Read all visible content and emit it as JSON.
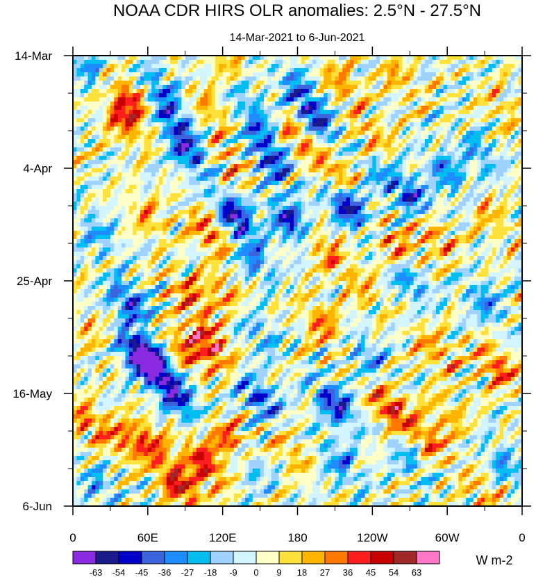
{
  "chart_data": {
    "type": "heatmap",
    "title": "NOAA CDR HIRS OLR anomalies: 2.5°N - 27.5°N",
    "subtitle": "14-Mar-2021 to 6-Jun-2021",
    "xlabel": "",
    "ylabel": "",
    "x_ticks": [
      "0",
      "60E",
      "120E",
      "180",
      "120W",
      "60W",
      "0"
    ],
    "x_range_deg": [
      0,
      360
    ],
    "y_ticks": [
      "14-Mar",
      "4-Apr",
      "25-Apr",
      "16-May",
      "6-Jun"
    ],
    "y_range_days": [
      0,
      84
    ],
    "units": "W m-2",
    "levels": [
      -63,
      -54,
      -45,
      -36,
      -27,
      -18,
      -9,
      0,
      9,
      18,
      27,
      36,
      45,
      54,
      63
    ],
    "colors": [
      "#8a2be2",
      "#1a1a8c",
      "#0000c8",
      "#3c64dc",
      "#1e8cff",
      "#00bef0",
      "#a0d2ff",
      "#d2f5ff",
      "#ffffc8",
      "#ffe13c",
      "#ffb400",
      "#ff7800",
      "#ff1e1e",
      "#c80000",
      "#a02828",
      "#ff78c8"
    ],
    "anomaly_centers": [
      {
        "lon": 15,
        "day": 3,
        "value": -25
      },
      {
        "lon": 45,
        "day": 8,
        "value": 38
      },
      {
        "lon": 40,
        "day": 12,
        "value": 35
      },
      {
        "lon": 70,
        "day": 6,
        "value": -28
      },
      {
        "lon": 80,
        "day": 12,
        "value": -35
      },
      {
        "lon": 93,
        "day": 18,
        "value": -45
      },
      {
        "lon": 110,
        "day": 10,
        "value": 22
      },
      {
        "lon": 125,
        "day": 2,
        "value": 18
      },
      {
        "lon": 125,
        "day": 20,
        "value": 20
      },
      {
        "lon": 140,
        "day": 8,
        "value": -20
      },
      {
        "lon": 150,
        "day": 14,
        "value": -30
      },
      {
        "lon": 160,
        "day": 20,
        "value": -40
      },
      {
        "lon": 180,
        "day": 6,
        "value": -30
      },
      {
        "lon": 195,
        "day": 12,
        "value": -45
      },
      {
        "lon": 180,
        "day": 15,
        "value": 30
      },
      {
        "lon": 210,
        "day": 22,
        "value": 30
      },
      {
        "lon": 215,
        "day": 5,
        "value": 25
      },
      {
        "lon": 240,
        "day": 15,
        "value": 22
      },
      {
        "lon": 245,
        "day": 22,
        "value": -20
      },
      {
        "lon": 260,
        "day": 4,
        "value": 20
      },
      {
        "lon": 270,
        "day": 26,
        "value": -40
      },
      {
        "lon": 300,
        "day": 22,
        "value": -32
      },
      {
        "lon": 325,
        "day": 18,
        "value": -25
      },
      {
        "lon": 345,
        "day": 10,
        "value": 15
      },
      {
        "lon": 60,
        "day": 30,
        "value": 22
      },
      {
        "lon": 130,
        "day": 30,
        "value": -55
      },
      {
        "lon": 175,
        "day": 31,
        "value": -50
      },
      {
        "lon": 220,
        "day": 28,
        "value": -55
      },
      {
        "lon": 110,
        "day": 33,
        "value": 35
      },
      {
        "lon": 145,
        "day": 38,
        "value": -30
      },
      {
        "lon": 200,
        "day": 36,
        "value": 30
      },
      {
        "lon": 260,
        "day": 36,
        "value": 28
      },
      {
        "lon": 290,
        "day": 34,
        "value": 25
      },
      {
        "lon": 335,
        "day": 30,
        "value": 20
      },
      {
        "lon": 20,
        "day": 33,
        "value": -22
      },
      {
        "lon": 95,
        "day": 45,
        "value": 30
      },
      {
        "lon": 120,
        "day": 44,
        "value": 22
      },
      {
        "lon": 230,
        "day": 43,
        "value": 20
      },
      {
        "lon": 270,
        "day": 42,
        "value": -30
      },
      {
        "lon": 330,
        "day": 46,
        "value": -28
      },
      {
        "lon": 45,
        "day": 46,
        "value": -45
      },
      {
        "lon": 55,
        "day": 56,
        "value": -65
      },
      {
        "lon": 65,
        "day": 58,
        "value": -50
      },
      {
        "lon": 90,
        "day": 55,
        "value": 30
      },
      {
        "lon": 110,
        "day": 54,
        "value": 45
      },
      {
        "lon": 150,
        "day": 52,
        "value": -22
      },
      {
        "lon": 200,
        "day": 50,
        "value": 30
      },
      {
        "lon": 235,
        "day": 56,
        "value": -25
      },
      {
        "lon": 290,
        "day": 55,
        "value": 25
      },
      {
        "lon": 340,
        "day": 58,
        "value": 35
      },
      {
        "lon": 15,
        "day": 52,
        "value": 15
      },
      {
        "lon": 85,
        "day": 64,
        "value": -45
      },
      {
        "lon": 150,
        "day": 64,
        "value": -40
      },
      {
        "lon": 210,
        "day": 65,
        "value": -50
      },
      {
        "lon": 255,
        "day": 66,
        "value": 45
      },
      {
        "lon": 300,
        "day": 67,
        "value": 20
      },
      {
        "lon": 10,
        "day": 68,
        "value": 30
      },
      {
        "lon": 40,
        "day": 72,
        "value": 25
      },
      {
        "lon": 60,
        "day": 72,
        "value": 35
      },
      {
        "lon": 85,
        "day": 80,
        "value": 48
      },
      {
        "lon": 105,
        "day": 76,
        "value": 45
      },
      {
        "lon": 125,
        "day": 72,
        "value": 40
      },
      {
        "lon": 140,
        "day": 76,
        "value": -25
      },
      {
        "lon": 175,
        "day": 74,
        "value": 20
      },
      {
        "lon": 215,
        "day": 76,
        "value": -28
      },
      {
        "lon": 270,
        "day": 75,
        "value": -22
      },
      {
        "lon": 285,
        "day": 72,
        "value": 30
      },
      {
        "lon": 345,
        "day": 76,
        "value": -25
      },
      {
        "lon": 330,
        "day": 82,
        "value": 20
      },
      {
        "lon": 20,
        "day": 80,
        "value": -20
      }
    ]
  },
  "colorbar": {
    "labels": [
      "-63",
      "-54",
      "-45",
      "-36",
      "-27",
      "-18",
      "-9",
      "0",
      "9",
      "18",
      "27",
      "36",
      "45",
      "54",
      "63"
    ],
    "units": "W m-2"
  }
}
